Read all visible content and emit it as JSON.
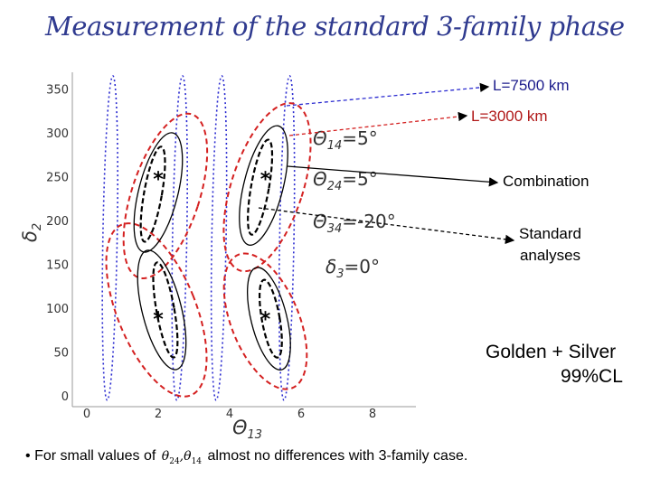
{
  "title": "Measurement of the standard 3-family phase",
  "annotations": {
    "l7500": "L=7500 km",
    "l3000": "L=3000 km",
    "combination": "Combination",
    "standard_line1": "Standard",
    "standard_line2": "analyses",
    "golden_silver": "Golden + Silver",
    "cl": "99%CL"
  },
  "params": {
    "p1_sym": "Θ",
    "p1_sub": "14",
    "p1_val": "=5°",
    "p2_sym": "Θ",
    "p2_sub": "24",
    "p2_val": "=5°",
    "p3_sym": "Θ",
    "p3_sub": "34",
    "p3_val": "=-20°",
    "p4_sym": "δ",
    "p4_sub": "3",
    "p4_val": "=0°"
  },
  "axes": {
    "xlabel_sym": "Θ",
    "xlabel_sub": "13",
    "ylabel_sym": "δ",
    "ylabel_sub": "2"
  },
  "note": {
    "bullet": "•",
    "prefix": "For small values of",
    "sym1": "θ",
    "sub1": "24",
    "comma": ",",
    "sym2": "θ",
    "sub2": "14",
    "suffix": "almost no differences with 3-family case."
  },
  "colors": {
    "title": "#2f3a8f",
    "red_contour": "#d42020",
    "blue_contour": "#2a2ad0",
    "black_contour": "#000000",
    "axis_text": "#333333"
  },
  "chart_data": {
    "type": "scatter",
    "title": "",
    "xlabel": "Θ13",
    "ylabel": "δ2",
    "xlim": [
      0,
      10.5
    ],
    "ylim": [
      0,
      360
    ],
    "grid": false,
    "x_ticks": [
      0,
      2,
      4,
      6,
      8
    ],
    "y_ticks": [
      0,
      50,
      100,
      150,
      200,
      250,
      300,
      350
    ],
    "true_points": [
      {
        "x": 2,
        "y": 250,
        "marker": "*"
      },
      {
        "x": 5,
        "y": 250,
        "marker": "*"
      },
      {
        "x": 2,
        "y": 90,
        "marker": "*"
      },
      {
        "x": 5,
        "y": 90,
        "marker": "*"
      }
    ],
    "series": [
      {
        "name": "L=7500 km",
        "style": "blue dotted",
        "contours": [
          {
            "cx": 0.65,
            "cy": 180,
            "rx": 0.2,
            "ry": 185,
            "rot": 1
          },
          {
            "cx": 2.6,
            "cy": 180,
            "rx": 0.2,
            "ry": 185,
            "rot": 1
          },
          {
            "cx": 3.7,
            "cy": 180,
            "rx": 0.2,
            "ry": 185,
            "rot": 1
          },
          {
            "cx": 5.6,
            "cy": 180,
            "rx": 0.2,
            "ry": 185,
            "rot": 1
          }
        ]
      },
      {
        "name": "L=3000 km",
        "style": "red dashed",
        "contours": [
          {
            "cx": 2.2,
            "cy": 228,
            "rx": 0.95,
            "ry": 98,
            "rot": 18
          },
          {
            "cx": 5.05,
            "cy": 238,
            "rx": 1.0,
            "ry": 100,
            "rot": 18
          },
          {
            "cx": 1.95,
            "cy": 98,
            "rx": 1.1,
            "ry": 105,
            "rot": -22
          },
          {
            "cx": 5.0,
            "cy": 85,
            "rx": 0.95,
            "ry": 82,
            "rot": -22
          }
        ]
      },
      {
        "name": "Combination",
        "style": "black solid",
        "contours": [
          {
            "cx": 2.0,
            "cy": 232,
            "rx": 0.55,
            "ry": 70,
            "rot": 14
          },
          {
            "cx": 4.95,
            "cy": 240,
            "rx": 0.55,
            "ry": 70,
            "rot": 14
          },
          {
            "cx": 2.1,
            "cy": 98,
            "rx": 0.55,
            "ry": 70,
            "rot": -14
          },
          {
            "cx": 5.1,
            "cy": 88,
            "rx": 0.5,
            "ry": 60,
            "rot": -14
          }
        ]
      },
      {
        "name": "Standard analyses",
        "style": "black dashed",
        "contours": [
          {
            "cx": 1.85,
            "cy": 230,
            "rx": 0.25,
            "ry": 55,
            "rot": 10
          },
          {
            "cx": 4.85,
            "cy": 238,
            "rx": 0.25,
            "ry": 55,
            "rot": 10
          },
          {
            "cx": 2.2,
            "cy": 98,
            "rx": 0.25,
            "ry": 55,
            "rot": -10
          },
          {
            "cx": 5.15,
            "cy": 88,
            "rx": 0.25,
            "ry": 45,
            "rot": -10
          }
        ]
      }
    ]
  }
}
